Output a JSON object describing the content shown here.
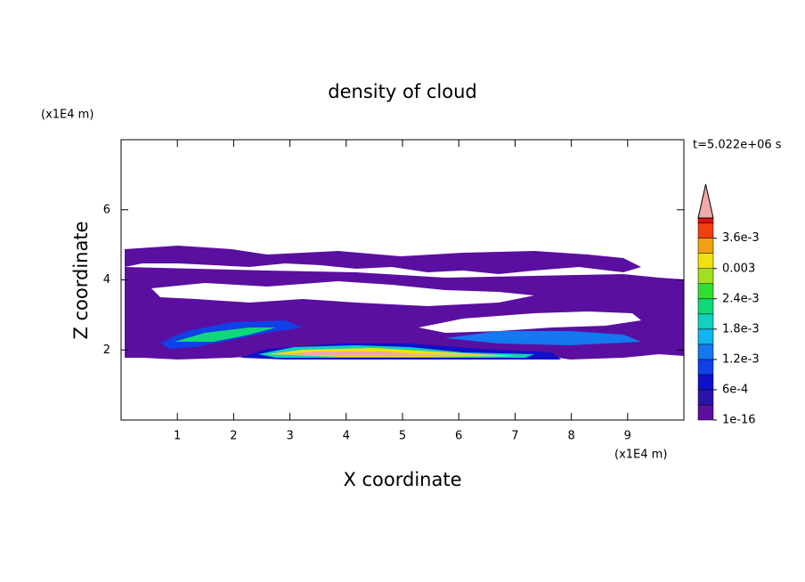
{
  "chart_data": {
    "type": "contour",
    "title": "density of cloud",
    "x_label": "X coordinate",
    "y_label": "Z coordinate",
    "x_unit": "(x1E4 m)",
    "y_unit": "(x1E4 m)",
    "time_label": "t=5.022e+06 s",
    "xlim": [
      0,
      10
    ],
    "xticks": [
      1,
      2,
      3,
      4,
      5,
      6,
      7,
      8,
      9
    ],
    "ylim": [
      0,
      8
    ],
    "yticks": [
      2,
      4,
      6
    ],
    "levels": [
      1e-16,
      0.0003,
      0.0006,
      0.0009,
      0.0012,
      0.0015,
      0.0018,
      0.0021,
      0.0024,
      0.0027,
      0.003,
      0.0033,
      0.0036,
      0.0039
    ],
    "colors": [
      "#5a0fa0",
      "#2a14a8",
      "#1010c8",
      "#1040e8",
      "#1478f0",
      "#10b4f0",
      "#10d0c0",
      "#10d878",
      "#30e030",
      "#a0e020",
      "#f0e010",
      "#f0a010",
      "#f04010",
      "#e01010"
    ],
    "extend_color": "#f0a8a8",
    "clim": [
      0,
      0.004
    ],
    "cticks": [
      1e-16,
      {
        "value": 0.0006,
        "label": "6e-4"
      },
      {
        "value": 0.0012,
        "label": "1.2e-3"
      },
      {
        "value": 0.0018,
        "label": "1.8e-3"
      },
      {
        "value": 0.0024,
        "label": "2.4e-3"
      },
      0.003,
      {
        "value": 0.0036,
        "label": "3.6e-3"
      }
    ]
  }
}
